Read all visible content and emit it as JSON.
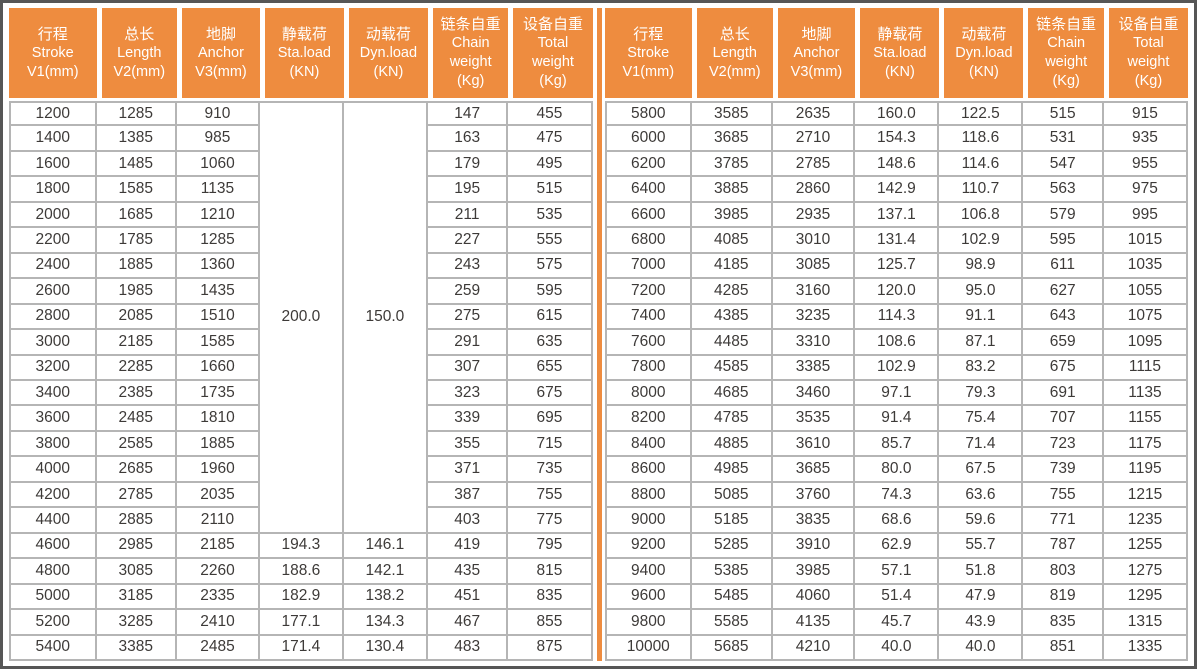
{
  "colors": {
    "header_orange": "#EE8C3F",
    "divider_orange": "#EF8A3A",
    "grid_line": "#b5b5b5",
    "outer_border": "#565656",
    "body_text": "#3d3a38",
    "header_text": "#ffffff"
  },
  "table": {
    "column_headers": [
      {
        "lines": [
          "行程",
          "Stroke",
          "V1(mm)"
        ]
      },
      {
        "lines": [
          "总长",
          "Length",
          "V2(mm)"
        ]
      },
      {
        "lines": [
          "地脚",
          "Anchor",
          "V3(mm)"
        ]
      },
      {
        "lines": [
          "静载荷",
          "Sta.load",
          "(KN)"
        ]
      },
      {
        "lines": [
          "动载荷",
          "Dyn.load",
          "(KN)"
        ]
      },
      {
        "lines": [
          "链条自重",
          "Chain",
          "weight",
          "(Kg)"
        ]
      },
      {
        "lines": [
          "设备自重",
          "Total",
          "weight",
          "(Kg)"
        ]
      }
    ],
    "left": {
      "merged": {
        "sta_load": "200.0",
        "dyn_load": "150.0",
        "row_span": 17
      },
      "rows": [
        [
          1200,
          1285,
          910,
          null,
          null,
          147,
          455
        ],
        [
          1400,
          1385,
          985,
          null,
          null,
          163,
          475
        ],
        [
          1600,
          1485,
          1060,
          null,
          null,
          179,
          495
        ],
        [
          1800,
          1585,
          1135,
          null,
          null,
          195,
          515
        ],
        [
          2000,
          1685,
          1210,
          null,
          null,
          211,
          535
        ],
        [
          2200,
          1785,
          1285,
          null,
          null,
          227,
          555
        ],
        [
          2400,
          1885,
          1360,
          null,
          null,
          243,
          575
        ],
        [
          2600,
          1985,
          1435,
          null,
          null,
          259,
          595
        ],
        [
          2800,
          2085,
          1510,
          null,
          null,
          275,
          615
        ],
        [
          3000,
          2185,
          1585,
          null,
          null,
          291,
          635
        ],
        [
          3200,
          2285,
          1660,
          null,
          null,
          307,
          655
        ],
        [
          3400,
          2385,
          1735,
          null,
          null,
          323,
          675
        ],
        [
          3600,
          2485,
          1810,
          null,
          null,
          339,
          695
        ],
        [
          3800,
          2585,
          1885,
          null,
          null,
          355,
          715
        ],
        [
          4000,
          2685,
          1960,
          null,
          null,
          371,
          735
        ],
        [
          4200,
          2785,
          2035,
          null,
          null,
          387,
          755
        ],
        [
          4400,
          2885,
          2110,
          null,
          null,
          403,
          775
        ],
        [
          4600,
          2985,
          2185,
          "194.3",
          "146.1",
          419,
          795
        ],
        [
          4800,
          3085,
          2260,
          "188.6",
          "142.1",
          435,
          815
        ],
        [
          5000,
          3185,
          2335,
          "182.9",
          "138.2",
          451,
          835
        ],
        [
          5200,
          3285,
          2410,
          "177.1",
          "134.3",
          467,
          855
        ],
        [
          5400,
          3385,
          2485,
          "171.4",
          "130.4",
          483,
          875
        ]
      ]
    },
    "right": {
      "rows": [
        [
          5800,
          3585,
          2635,
          "160.0",
          "122.5",
          515,
          915
        ],
        [
          6000,
          3685,
          2710,
          "154.3",
          "118.6",
          531,
          935
        ],
        [
          6200,
          3785,
          2785,
          "148.6",
          "114.6",
          547,
          955
        ],
        [
          6400,
          3885,
          2860,
          "142.9",
          "110.7",
          563,
          975
        ],
        [
          6600,
          3985,
          2935,
          "137.1",
          "106.8",
          579,
          995
        ],
        [
          6800,
          4085,
          3010,
          "131.4",
          "102.9",
          595,
          1015
        ],
        [
          7000,
          4185,
          3085,
          "125.7",
          "98.9",
          611,
          1035
        ],
        [
          7200,
          4285,
          3160,
          "120.0",
          "95.0",
          627,
          1055
        ],
        [
          7400,
          4385,
          3235,
          "114.3",
          "91.1",
          643,
          1075
        ],
        [
          7600,
          4485,
          3310,
          "108.6",
          "87.1",
          659,
          1095
        ],
        [
          7800,
          4585,
          3385,
          "102.9",
          "83.2",
          675,
          1115
        ],
        [
          8000,
          4685,
          3460,
          "97.1",
          "79.3",
          691,
          1135
        ],
        [
          8200,
          4785,
          3535,
          "91.4",
          "75.4",
          707,
          1155
        ],
        [
          8400,
          4885,
          3610,
          "85.7",
          "71.4",
          723,
          1175
        ],
        [
          8600,
          4985,
          3685,
          "80.0",
          "67.5",
          739,
          1195
        ],
        [
          8800,
          5085,
          3760,
          "74.3",
          "63.6",
          755,
          1215
        ],
        [
          9000,
          5185,
          3835,
          "68.6",
          "59.6",
          771,
          1235
        ],
        [
          9200,
          5285,
          3910,
          "62.9",
          "55.7",
          787,
          1255
        ],
        [
          9400,
          5385,
          3985,
          "57.1",
          "51.8",
          803,
          1275
        ],
        [
          9600,
          5485,
          4060,
          "51.4",
          "47.9",
          819,
          1295
        ],
        [
          9800,
          5585,
          4135,
          "45.7",
          "43.9",
          835,
          1315
        ],
        [
          10000,
          5685,
          4210,
          "40.0",
          "40.0",
          851,
          1335
        ]
      ]
    }
  }
}
